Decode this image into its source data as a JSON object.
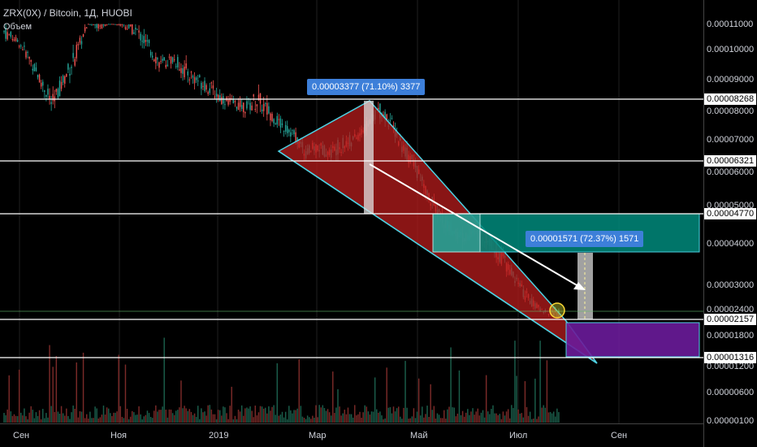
{
  "header": {
    "symbol": "ZRX(0X) / Bitcoin, 1Д, HUOBI",
    "volume_label": "Объем"
  },
  "price_ticks": [
    {
      "price": "0.00011000"
    },
    {
      "price": "0.00010000"
    },
    {
      "price": "0.00009000"
    },
    {
      "price": "0.00008000"
    },
    {
      "price": "0.00007000"
    },
    {
      "price": "0.00006000"
    },
    {
      "price": "0.00005000"
    },
    {
      "price": "0.00004000"
    },
    {
      "price": "0.00003000"
    },
    {
      "price": "0.00002400"
    },
    {
      "price": "0.00001800"
    },
    {
      "price": "0.00001200"
    },
    {
      "price": "0.00000600"
    },
    {
      "price": "0.00000100"
    }
  ],
  "level_labels": [
    {
      "price": "0.00008268"
    },
    {
      "price": "0.00006321"
    },
    {
      "price": "0.00004770"
    },
    {
      "price": "0.00002157"
    },
    {
      "price": "0.00001316"
    }
  ],
  "date_labels": [
    {
      "label": "Сен"
    },
    {
      "label": "Ноя"
    },
    {
      "label": "2019"
    },
    {
      "label": "Мар"
    },
    {
      "label": "Май"
    },
    {
      "label": "Июл"
    },
    {
      "label": "Сен"
    }
  ],
  "callouts": {
    "top": "0.00003377 (71.10%) 3377",
    "right": "0.00001571 (72.37%) 1571"
  },
  "chart_data": {
    "type": "candlestick",
    "colors": {
      "up": "#26a69a",
      "down": "#ef5350",
      "wedge_fill": "#b71c1c",
      "target_box": "#00897b",
      "purple_box": "#7b1fa2",
      "level_line": "#ffffff",
      "callout": "#3d7fd9",
      "arrow": "#ffffff"
    },
    "price_path": [
      [
        0.000104,
        0.00011
      ],
      [
        0.000103,
        0.000105
      ],
      [
        9.6e-05,
        0.0001
      ],
      [
        8.8e-05,
        9.2e-05
      ],
      [
        7.9e-05,
        8.5e-05
      ],
      [
        8.8e-05,
        9.3e-05
      ],
      [
        9.5e-05,
        0.000102
      ],
      [
        0.00011,
        0.000112
      ],
      [
        0.000108,
        0.000112
      ],
      [
        0.000111,
        0.000112
      ],
      [
        0.000108,
        0.000111
      ],
      [
        0.000105,
        0.00011
      ],
      [
        9.8e-05,
        0.000104
      ],
      [
        9.3e-05,
        9.7e-05
      ],
      [
        9.5e-05,
        9.9e-05
      ],
      [
        9e-05,
        9.6e-05
      ],
      [
        8.8e-05,
        9.2e-05
      ],
      [
        8.5e-05,
        9e-05
      ],
      [
        8.2e-05,
        8.6e-05
      ],
      [
        8.1e-05,
        8.4e-05
      ],
      [
        7.9e-05,
        8.3e-05
      ],
      [
        8e-05,
        8.7e-05
      ],
      [
        7.7e-05,
        8.2e-05
      ],
      [
        7.3e-05,
        7.7e-05
      ],
      [
        7e-05,
        7.4e-05
      ],
      [
        6.4e-05,
        6.8e-05
      ],
      [
        6.6e-05,
        7e-05
      ],
      [
        6.4e-05,
        6.8e-05
      ],
      [
        6.6e-05,
        7.1e-05
      ],
      [
        6.8e-05,
        7.2e-05
      ],
      [
        7.2e-05,
        7.6e-05
      ],
      [
        7.8e-05,
        8.3e-05
      ],
      [
        7.4e-05,
        7.9e-05
      ],
      [
        6.6e-05,
        7e-05
      ],
      [
        6e-05,
        6.5e-05
      ],
      [
        5.2e-05,
        5.6e-05
      ],
      [
        4.6e-05,
        5e-05
      ],
      [
        4.2e-05,
        4.6e-05
      ],
      [
        4e-05,
        4.4e-05
      ],
      [
        4.1e-05,
        4.4e-05
      ],
      [
        4e-05,
        4.3e-05
      ],
      [
        3.6e-05,
        4e-05
      ],
      [
        3.2e-05,
        3.5e-05
      ],
      [
        2.7e-05,
        3e-05
      ],
      [
        2.4e-05,
        2.6e-05
      ],
      [
        2.3e-05,
        2.4e-05
      ],
      [
        2.2e-05,
        2.4e-05
      ]
    ],
    "levels": [
      "0.00008268",
      "0.00006321",
      "0.00004770",
      "0.00002157",
      "0.00001316"
    ]
  }
}
